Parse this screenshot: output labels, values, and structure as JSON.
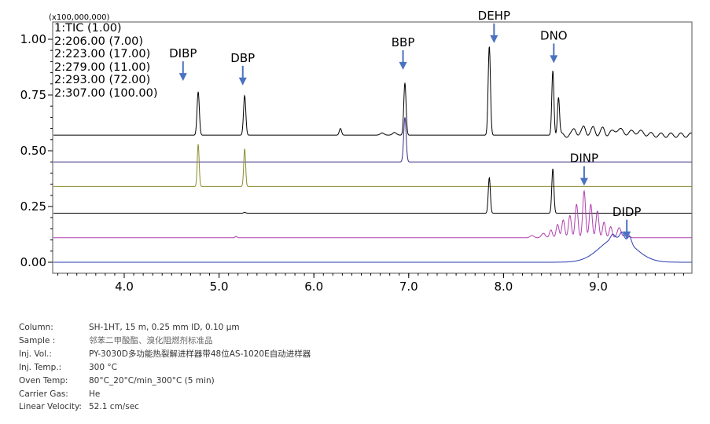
{
  "chart_data": {
    "type": "line",
    "title": "",
    "xlabel": "",
    "ylabel": "",
    "y_multiplier_label": "(x100,000,000)",
    "xlim": [
      3.25,
      10.0
    ],
    "ylim": [
      -0.05,
      1.08
    ],
    "xticks": [
      "4.0",
      "5.0",
      "6.0",
      "7.0",
      "8.0",
      "9.0"
    ],
    "xtick_values": [
      4,
      5,
      6,
      7,
      8,
      9
    ],
    "yticks": [
      "0.00",
      "0.25",
      "0.50",
      "0.75",
      "1.00"
    ],
    "ytick_values": [
      0,
      0.25,
      0.5,
      0.75,
      1.0
    ],
    "grid": false,
    "legend_placement": "top-left",
    "series": [
      {
        "name": "1:TIC (1.00)",
        "color": "#000000",
        "baseline": 0.57,
        "peaks": [
          [
            4.78,
            0.195,
            0.012
          ],
          [
            5.27,
            0.178,
            0.012
          ],
          [
            6.28,
            0.03,
            0.012
          ],
          [
            6.72,
            0.01,
            0.02
          ],
          [
            6.85,
            0.012,
            0.02
          ],
          [
            6.96,
            0.235,
            0.012
          ],
          [
            7.85,
            0.4,
            0.012
          ],
          [
            8.52,
            0.29,
            0.011
          ],
          [
            8.58,
            0.17,
            0.011
          ],
          [
            8.75,
            0.03,
            0.02
          ],
          [
            8.85,
            0.04,
            0.02
          ],
          [
            8.95,
            0.035,
            0.02
          ],
          [
            9.05,
            0.03,
            0.02
          ],
          [
            9.2,
            0.025,
            0.05
          ],
          [
            9.4,
            0.015,
            0.08
          ]
        ]
      },
      {
        "name": "2:206.00 (7.00)",
        "color": "#3d2b86",
        "baseline": 0.45,
        "peaks": [
          [
            6.96,
            0.2,
            0.013
          ]
        ]
      },
      {
        "name": "2:223.00 (17.00)",
        "color": "#8c8c2c",
        "baseline": 0.34,
        "peaks": [
          [
            4.78,
            0.19,
            0.01
          ],
          [
            5.27,
            0.17,
            0.01
          ]
        ]
      },
      {
        "name": "2:279.00 (11.00)",
        "color": "#000000",
        "baseline": 0.22,
        "peaks": [
          [
            7.85,
            0.16,
            0.011
          ],
          [
            8.52,
            0.2,
            0.011
          ],
          [
            5.27,
            0.004,
            0.01
          ]
        ]
      },
      {
        "name": "2:293.00 (72.00)",
        "color": "#b040b0",
        "baseline": 0.11,
        "peaks": [
          [
            5.18,
            0.006,
            0.01
          ],
          [
            8.3,
            0.01,
            0.02
          ],
          [
            8.42,
            0.02,
            0.02
          ],
          [
            8.5,
            0.035,
            0.015
          ],
          [
            8.57,
            0.06,
            0.015
          ],
          [
            8.63,
            0.08,
            0.015
          ],
          [
            8.7,
            0.1,
            0.015
          ],
          [
            8.77,
            0.15,
            0.015
          ],
          [
            8.85,
            0.21,
            0.015
          ],
          [
            8.92,
            0.15,
            0.015
          ],
          [
            8.99,
            0.12,
            0.015
          ],
          [
            9.06,
            0.07,
            0.015
          ],
          [
            9.13,
            0.05,
            0.015
          ],
          [
            9.22,
            0.045,
            0.02
          ],
          [
            9.3,
            0.025,
            0.02
          ]
        ]
      },
      {
        "name": "2:307.00 (100.00)",
        "color": "#2b3bb0",
        "baseline": 0.0,
        "peaks": [
          [
            9.2,
            0.11,
            0.18
          ],
          [
            9.25,
            0.03,
            0.02
          ],
          [
            9.33,
            0.03,
            0.02
          ],
          [
            9.15,
            0.02,
            0.02
          ]
        ]
      }
    ],
    "annotations": [
      {
        "label": "DIBP",
        "x": 4.62,
        "y": 0.82
      },
      {
        "label": "DBP",
        "x": 5.25,
        "y": 0.8
      },
      {
        "label": "BBP",
        "x": 6.94,
        "y": 0.87
      },
      {
        "label": "DEHP",
        "x": 7.9,
        "y": 0.99
      },
      {
        "label": "DNO",
        "x": 8.53,
        "y": 0.9
      },
      {
        "label": "DINP",
        "x": 8.85,
        "y": 0.35
      },
      {
        "label": "DIDP",
        "x": 9.3,
        "y": 0.11
      }
    ]
  },
  "info": [
    {
      "key": "Column:",
      "value": "SH-1HT, 15 m, 0.25 mm ID, 0.10 µm"
    },
    {
      "key": "Sample :",
      "value": "邻苯二甲酸酯、溴化阻燃剂标准品"
    },
    {
      "key": "Inj. Vol.:",
      "value": "PY-3030D多功能热裂解进样器带48位AS-1020E自动进样器"
    },
    {
      "key": "Inj. Temp.:",
      "value": "300 °C"
    },
    {
      "key": "Oven Temp:",
      "value": "80°C_20°C/min_300°C (5 min)"
    },
    {
      "key": "Carrier Gas:",
      "value": "He"
    },
    {
      "key": "Linear Velocity:",
      "value": "52.1 cm/sec"
    }
  ]
}
